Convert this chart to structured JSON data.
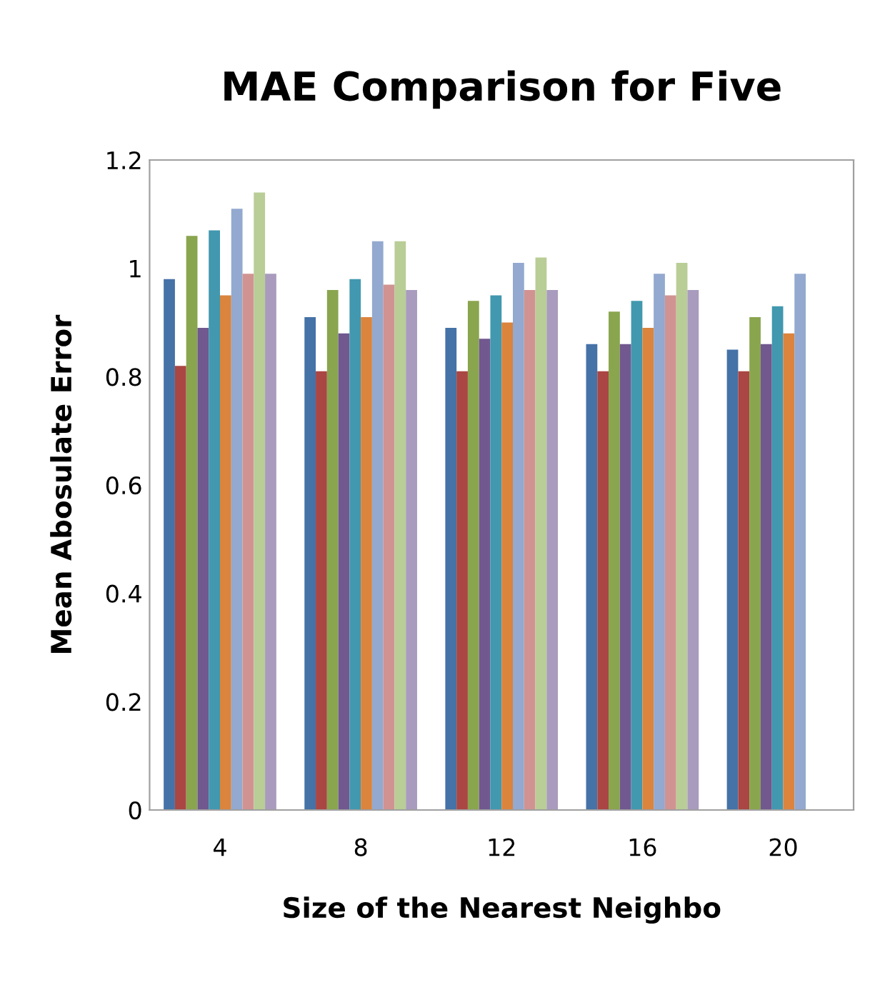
{
  "chart_data": {
    "type": "bar",
    "title": "MAE Comparison for Five",
    "xlabel": "Size of the Nearest Neighbo",
    "ylabel": "Mean Abosulate Error",
    "categories": [
      "4",
      "8",
      "12",
      "16",
      "20"
    ],
    "ylim": [
      0,
      1.2
    ],
    "yticks": [
      0,
      0.2,
      0.4,
      0.6,
      0.8,
      1,
      1.2
    ],
    "grid": false,
    "legend": false,
    "series": [
      {
        "color": "#4572a7",
        "values": [
          0.98,
          0.91,
          0.89,
          0.86,
          0.85
        ]
      },
      {
        "color": "#aa4643",
        "values": [
          0.82,
          0.81,
          0.81,
          0.81,
          0.81
        ]
      },
      {
        "color": "#89a54e",
        "values": [
          1.06,
          0.96,
          0.94,
          0.92,
          0.91
        ]
      },
      {
        "color": "#71588f",
        "values": [
          0.89,
          0.88,
          0.87,
          0.86,
          0.86
        ]
      },
      {
        "color": "#4198af",
        "values": [
          1.07,
          0.98,
          0.95,
          0.94,
          0.93
        ]
      },
      {
        "color": "#db843d",
        "values": [
          0.95,
          0.91,
          0.9,
          0.89,
          0.88
        ]
      },
      {
        "color": "#93a9cf",
        "values": [
          1.11,
          1.05,
          1.01,
          0.99,
          0.99
        ]
      },
      {
        "color": "#d19392",
        "values": [
          0.99,
          0.97,
          0.96,
          0.95,
          null
        ]
      },
      {
        "color": "#b9cd96",
        "values": [
          1.14,
          1.05,
          1.02,
          1.01,
          null
        ]
      },
      {
        "color": "#a99bbd",
        "values": [
          0.99,
          0.96,
          0.96,
          0.96,
          null
        ]
      }
    ]
  }
}
